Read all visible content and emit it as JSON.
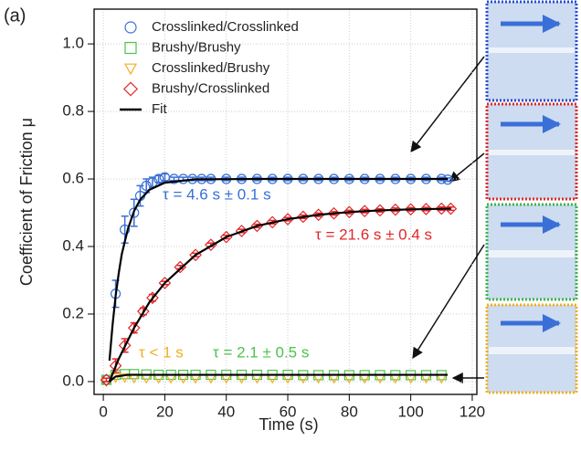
{
  "chart_data": {
    "type": "scatter",
    "panel_label": "(a)",
    "x_label": "Time (s)",
    "y_label": "Coefficient of Friction μ",
    "xlim": [
      -3,
      121.5
    ],
    "ylim": [
      -0.038,
      1.103
    ],
    "xticks": [
      0,
      20,
      40,
      60,
      80,
      100,
      120
    ],
    "yticks": [
      {
        "value": 0,
        "label": "0.0"
      },
      0.2,
      0.4,
      0.6,
      0.8,
      {
        "value": 1,
        "label": "1.0"
      }
    ],
    "grid": true,
    "legend": "upper left",
    "series": [
      {
        "name": "Crosslinked/Crosslinked",
        "color": "#3a6fd8",
        "marker": "circle",
        "x": [
          1,
          4,
          7,
          10,
          12,
          14,
          16,
          18,
          20,
          23,
          26,
          29,
          32,
          35,
          40,
          45,
          50,
          55,
          60,
          65,
          70,
          75,
          80,
          85,
          90,
          95,
          100,
          105,
          110,
          112
        ],
        "values": [
          0.005,
          0.26,
          0.45,
          0.5,
          0.55,
          0.58,
          0.59,
          0.6,
          0.605,
          0.6,
          0.6,
          0.6,
          0.6,
          0.6,
          0.6,
          0.6,
          0.6,
          0.6,
          0.6,
          0.6,
          0.6,
          0.6,
          0.6,
          0.6,
          0.6,
          0.6,
          0.6,
          0.6,
          0.6,
          0.598
        ],
        "errors": [
          0.005,
          0.04,
          0.04,
          0.04,
          0.03,
          0.02,
          0.015,
          0.01,
          0.01,
          0.005,
          0.005,
          0.005,
          0.005,
          0.005,
          0.005,
          0.005,
          0.005,
          0.005,
          0.005,
          0.005,
          0.005,
          0.005,
          0.005,
          0.005,
          0.005,
          0.005,
          0.005,
          0.005,
          0.005,
          0.005
        ]
      },
      {
        "name": "Brushy/Brushy",
        "color": "#4cc24c",
        "marker": "square",
        "x": [
          1,
          4,
          7,
          10,
          14,
          18,
          22,
          26,
          30,
          35,
          40,
          45,
          50,
          55,
          60,
          65,
          70,
          75,
          80,
          85,
          90,
          95,
          100,
          105,
          110
        ],
        "values": [
          0.005,
          0.02,
          0.022,
          0.022,
          0.021,
          0.02,
          0.02,
          0.02,
          0.02,
          0.02,
          0.02,
          0.02,
          0.02,
          0.02,
          0.02,
          0.019,
          0.019,
          0.019,
          0.019,
          0.019,
          0.019,
          0.019,
          0.019,
          0.019,
          0.019
        ]
      },
      {
        "name": "Crosslinked/Brushy",
        "color": "#f0b020",
        "marker": "triangle",
        "x": [
          1,
          4,
          7,
          10,
          14,
          18,
          22,
          26,
          30,
          35,
          40,
          45,
          50,
          55,
          60,
          65,
          70,
          75,
          80,
          85,
          90,
          95,
          100,
          105,
          110
        ],
        "values": [
          0,
          0.012,
          0.012,
          0.011,
          0.01,
          0.01,
          0.01,
          0.01,
          0.01,
          0.01,
          0.01,
          0.01,
          0.01,
          0.01,
          0.01,
          0.01,
          0.01,
          0.01,
          0.01,
          0.01,
          0.01,
          0.01,
          0.01,
          0.01,
          0.01
        ]
      },
      {
        "name": "Brushy/Crosslinked",
        "color": "#e0282a",
        "marker": "diamond",
        "x": [
          1,
          4,
          7,
          10,
          13,
          16,
          20,
          25,
          30,
          35,
          40,
          45,
          50,
          55,
          60,
          65,
          70,
          75,
          80,
          85,
          90,
          95,
          100,
          105,
          110,
          113
        ],
        "values": [
          0.005,
          0.047,
          0.107,
          0.159,
          0.208,
          0.248,
          0.292,
          0.339,
          0.375,
          0.405,
          0.428,
          0.446,
          0.461,
          0.472,
          0.481,
          0.488,
          0.494,
          0.498,
          0.502,
          0.505,
          0.507,
          0.509,
          0.51,
          0.511,
          0.512,
          0.512
        ],
        "errors": [
          0.005,
          0.02,
          0.02,
          0.015,
          0.01,
          0.01,
          0.005,
          0.005,
          0.005,
          0.005,
          0.005,
          0.005,
          0.005,
          0.005,
          0.005,
          0.005,
          0.005,
          0.005,
          0.005,
          0.005,
          0.005,
          0.005,
          0.005,
          0.005,
          0.005,
          0.005
        ]
      }
    ],
    "fit": {
      "name": "Fit",
      "color": "#000000",
      "curves": [
        {
          "x": [
            2,
            3,
            4,
            5,
            6,
            8,
            10,
            12,
            15,
            20,
            30,
            50,
            80,
            112
          ],
          "values": [
            0.062,
            0.167,
            0.253,
            0.32,
            0.377,
            0.452,
            0.505,
            0.539,
            0.568,
            0.589,
            0.599,
            0.6,
            0.6,
            0.6
          ]
        },
        {
          "x": [
            2,
            5,
            10,
            15,
            20,
            30,
            40,
            50,
            60,
            70,
            80,
            90,
            100,
            113
          ],
          "values": [
            0,
            0.067,
            0.159,
            0.235,
            0.292,
            0.375,
            0.428,
            0.461,
            0.481,
            0.494,
            0.502,
            0.507,
            0.51,
            0.512
          ]
        },
        {
          "x": [
            2,
            4,
            8,
            20,
            112
          ],
          "values": [
            0,
            0.015,
            0.02,
            0.02,
            0.02
          ]
        }
      ]
    },
    "annotations": [
      {
        "text": "τ = 4.6 s ± 0.1 s",
        "color": "#3a6fd8"
      },
      {
        "text": "τ = 21.6 s ± 0.4 s",
        "color": "#e0282a"
      },
      {
        "text": "τ < 1 s",
        "color": "#f0b020"
      },
      {
        "text": "τ = 2.1 ± 0.5 s",
        "color": "#4cc24c"
      }
    ]
  }
}
